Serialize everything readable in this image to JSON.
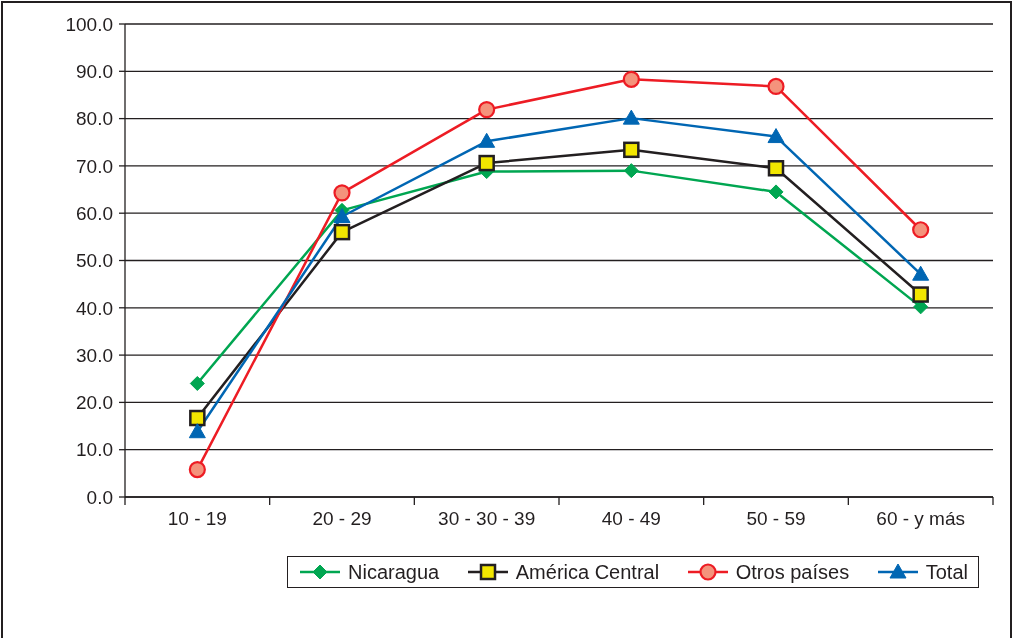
{
  "chart_data": {
    "type": "line",
    "categories": [
      "10 - 19",
      "20 - 29",
      "30 - 30 - 39",
      "40 - 49",
      "50 - 59",
      "60 - y más"
    ],
    "series": [
      {
        "name": "Nicaragua",
        "color": "#00a651",
        "marker": "diamond",
        "values": [
          24.0,
          60.6,
          68.8,
          69.0,
          64.5,
          40.2
        ]
      },
      {
        "name": "América Central",
        "color": "#231f20",
        "colors": [
          "#f2e600",
          "#f2e600",
          "#f2e600",
          "#f2e600",
          "#f2e600",
          "#f2e600"
        ],
        "marker": "square",
        "values": [
          16.7,
          56.0,
          70.6,
          73.4,
          69.5,
          42.8
        ]
      },
      {
        "name": "Otros países",
        "color": "#ed1c24",
        "colors": [
          "#f4937c",
          "#f4937c",
          "#f4937c",
          "#f4937c",
          "#f4937c",
          "#f4937c"
        ],
        "marker": "circle",
        "values": [
          5.8,
          64.3,
          81.9,
          88.3,
          86.8,
          56.5
        ]
      },
      {
        "name": "Total",
        "color": "#0066b3",
        "marker": "triangle",
        "values": [
          13.8,
          59.3,
          75.2,
          80.1,
          76.2,
          47.1
        ]
      }
    ],
    "ylim": [
      0,
      100
    ],
    "yticks": [
      {
        "value": 0,
        "label": "0.0"
      },
      {
        "value": 10,
        "label": "10.0"
      },
      {
        "value": 20,
        "label": "20.0"
      },
      {
        "value": 30,
        "label": "30.0"
      },
      {
        "value": 40,
        "label": "40.0"
      },
      {
        "value": 50,
        "label": "50.0"
      },
      {
        "value": 60,
        "label": "60.0"
      },
      {
        "value": 70,
        "label": "70.0"
      },
      {
        "value": 80,
        "label": "80.0"
      },
      {
        "value": 90,
        "label": "90.0"
      },
      {
        "value": 100,
        "label": "100.0"
      }
    ],
    "grid": "y",
    "legend": "bottom",
    "line_style": "solid"
  }
}
